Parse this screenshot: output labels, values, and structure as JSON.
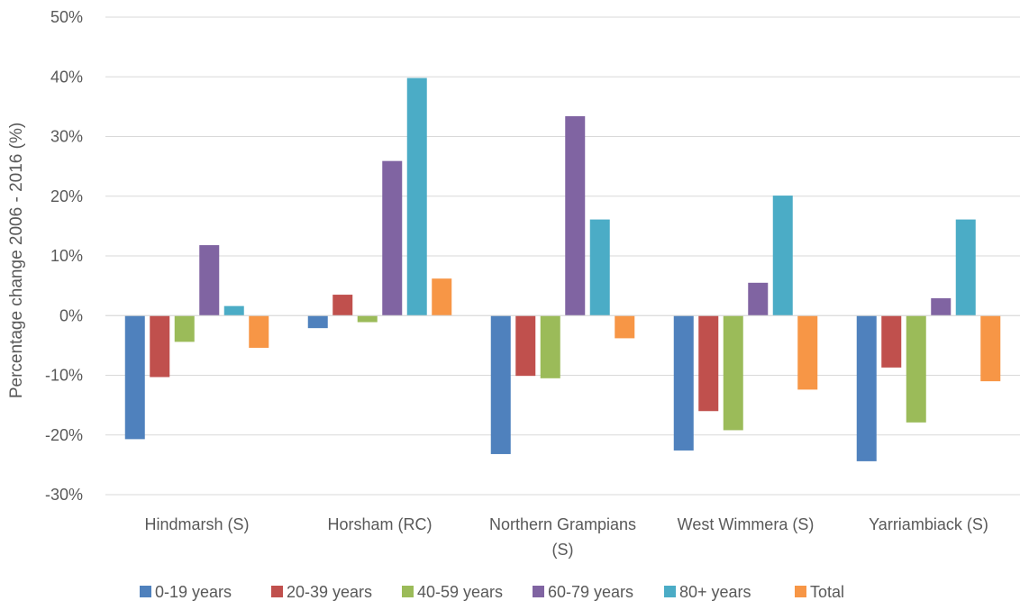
{
  "chart_data": {
    "type": "bar",
    "title": "",
    "xlabel": "",
    "ylabel": "Percentage change 2006 - 2016 (%)",
    "ylim": [
      -30,
      50
    ],
    "yticks": [
      "-30%",
      "-20%",
      "-10%",
      "0%",
      "10%",
      "20%",
      "30%",
      "40%",
      "50%"
    ],
    "grid": true,
    "legend": "bottom",
    "categories": [
      [
        "Hindmarsh (S)"
      ],
      [
        "Horsham (RC)"
      ],
      [
        "Northern Grampians",
        "(S)"
      ],
      [
        "West Wimmera (S)"
      ],
      [
        "Yarriambiack (S)"
      ]
    ],
    "series": [
      {
        "name": "0-19 years",
        "color": "#4f81bd",
        "values": [
          -20.7,
          -2.1,
          -23.2,
          -22.6,
          -24.4
        ]
      },
      {
        "name": "20-39 years",
        "color": "#c0504d",
        "values": [
          -10.3,
          3.5,
          -10.1,
          -16.0,
          -8.7
        ]
      },
      {
        "name": "40-59 years",
        "color": "#9bbb59",
        "values": [
          -4.4,
          -1.1,
          -10.5,
          -19.2,
          -17.9
        ]
      },
      {
        "name": "60-79 years",
        "color": "#8064a2",
        "values": [
          11.8,
          25.9,
          33.4,
          5.5,
          2.9
        ]
      },
      {
        "name": "80+ years",
        "color": "#4bacc6",
        "values": [
          1.6,
          39.8,
          16.1,
          20.1,
          16.1
        ]
      },
      {
        "name": "Total",
        "color": "#f79646",
        "values": [
          -5.4,
          6.2,
          -3.8,
          -12.4,
          -11.0
        ]
      }
    ]
  }
}
